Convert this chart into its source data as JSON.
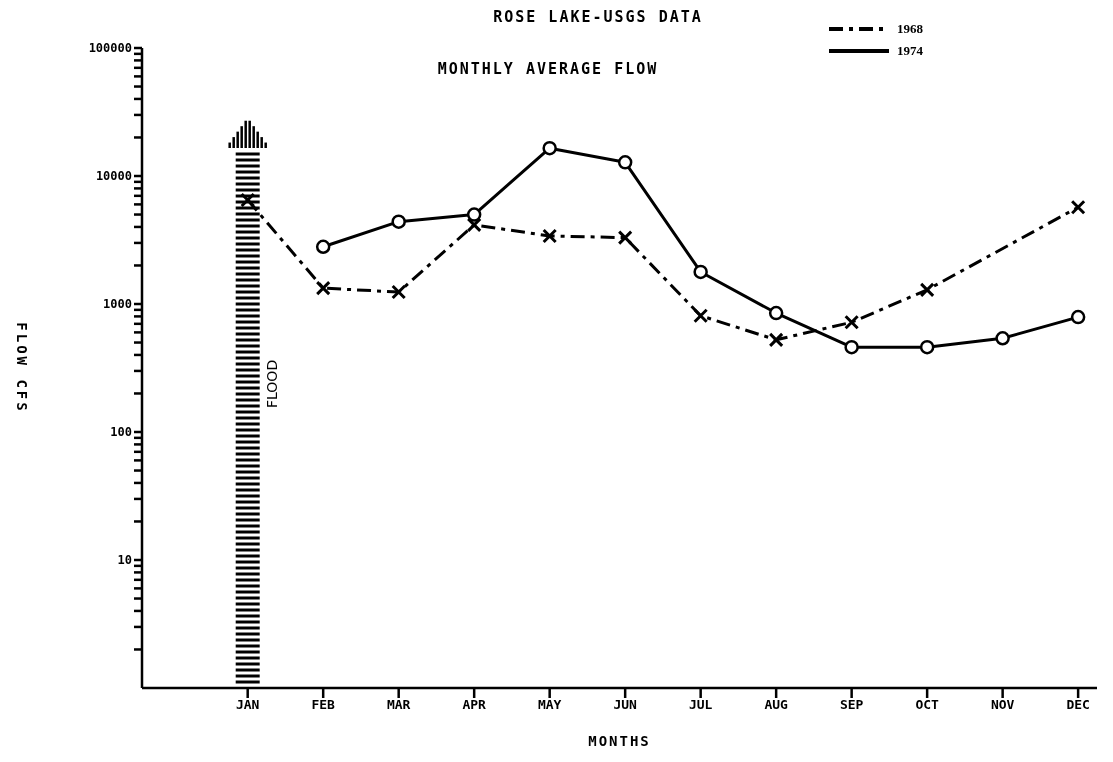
{
  "chart_data": {
    "type": "line",
    "title": "ROSE LAKE-USGS DATA",
    "subtitle": "MONTHLY AVERAGE FLOW",
    "xlabel": "MONTHS",
    "ylabel": "FLOW CFS",
    "log": "y",
    "grid": false,
    "legend": "top right",
    "ylim": [
      1,
      100000
    ],
    "categories": [
      "JAN",
      "FEB",
      "MAR",
      "APR",
      "MAY",
      "JUN",
      "JUL",
      "AUG",
      "SEP",
      "OCT",
      "NOV",
      "DEC"
    ],
    "yticks": [
      {
        "value": 2,
        "label": null
      },
      {
        "value": 3,
        "label": null
      },
      {
        "value": 4,
        "label": null
      },
      {
        "value": 5,
        "label": null
      },
      {
        "value": 6,
        "label": null
      },
      {
        "value": 7,
        "label": null
      },
      {
        "value": 8,
        "label": null
      },
      {
        "value": 9,
        "label": null
      },
      {
        "value": 10,
        "label": "10"
      },
      {
        "value": 20,
        "label": null
      },
      {
        "value": 30,
        "label": null
      },
      {
        "value": 40,
        "label": null
      },
      {
        "value": 50,
        "label": null
      },
      {
        "value": 60,
        "label": null
      },
      {
        "value": 70,
        "label": null
      },
      {
        "value": 80,
        "label": null
      },
      {
        "value": 90,
        "label": null
      },
      {
        "value": 100,
        "label": "100"
      },
      {
        "value": 200,
        "label": null
      },
      {
        "value": 300,
        "label": null
      },
      {
        "value": 400,
        "label": null
      },
      {
        "value": 500,
        "label": null
      },
      {
        "value": 600,
        "label": null
      },
      {
        "value": 700,
        "label": null
      },
      {
        "value": 800,
        "label": null
      },
      {
        "value": 900,
        "label": null
      },
      {
        "value": 1000,
        "label": "1000"
      },
      {
        "value": 2000,
        "label": null
      },
      {
        "value": 3000,
        "label": null
      },
      {
        "value": 4000,
        "label": null
      },
      {
        "value": 5000,
        "label": null
      },
      {
        "value": 6000,
        "label": null
      },
      {
        "value": 7000,
        "label": null
      },
      {
        "value": 8000,
        "label": null
      },
      {
        "value": 9000,
        "label": null
      },
      {
        "value": 10000,
        "label": "10000"
      },
      {
        "value": 20000,
        "label": null
      },
      {
        "value": 30000,
        "label": null
      },
      {
        "value": 40000,
        "label": null
      },
      {
        "value": 50000,
        "label": null
      },
      {
        "value": 60000,
        "label": null
      },
      {
        "value": 70000,
        "label": null
      },
      {
        "value": 80000,
        "label": null
      },
      {
        "value": 90000,
        "label": null
      },
      {
        "value": 100000,
        "label": "100000"
      }
    ],
    "annotations": [
      "FLOOD"
    ],
    "series": [
      {
        "name": "1968",
        "color": "#000000",
        "marker": "cross",
        "line_style": "dashed",
        "values": [
          6500,
          1330,
          1240,
          4150,
          3400,
          3300,
          810,
          525,
          720,
          1290,
          null,
          5700
        ]
      },
      {
        "name": "1974",
        "color": "#000000",
        "marker": "circle",
        "line_style": "solid",
        "values": [
          null,
          2800,
          4400,
          5000,
          16500,
          12800,
          1780,
          850,
          460,
          460,
          540,
          790
        ]
      }
    ]
  }
}
